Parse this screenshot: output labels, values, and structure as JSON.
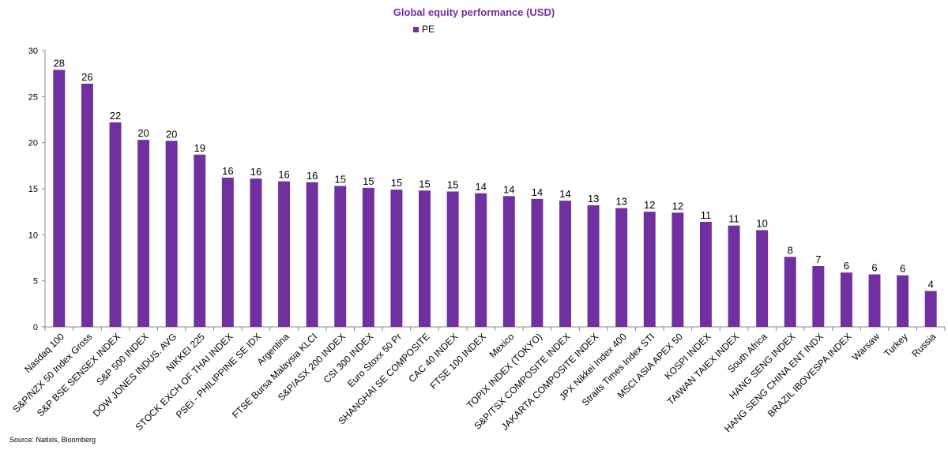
{
  "chart_data": {
    "type": "bar",
    "title": "Global equity performance (USD)",
    "legend": "top",
    "series": [
      {
        "name": "PE",
        "color": "#7030A0",
        "values": [
          27.9,
          26.4,
          22.2,
          20.3,
          20.2,
          18.7,
          16.2,
          16.1,
          15.8,
          15.7,
          15.3,
          15.1,
          14.9,
          14.8,
          14.7,
          14.5,
          14.2,
          13.9,
          13.7,
          13.2,
          12.9,
          12.5,
          12.4,
          11.4,
          11.0,
          10.5,
          7.6,
          6.6,
          5.9,
          5.7,
          5.6,
          3.9
        ]
      }
    ],
    "data_labels": [
      "28",
      "26",
      "22",
      "20",
      "20",
      "19",
      "16",
      "16",
      "16",
      "16",
      "15",
      "15",
      "15",
      "15",
      "15",
      "14",
      "14",
      "14",
      "14",
      "13",
      "13",
      "12",
      "12",
      "11",
      "11",
      "10",
      "8",
      "7",
      "6",
      "6",
      "6",
      "4"
    ],
    "categories": [
      "Nasdaq 100",
      "S&P/NZX 50 Index Gross",
      "S&P BSE SENSEX INDEX",
      "S&P 500 INDEX",
      "DOW JONES INDUS. AVG",
      "NIKKEI 225",
      "STOCK EXCH OF THAI INDEX",
      "PSEi - PHILIPPINE SE IDX",
      "Argentina",
      "FTSE Bursa Malaysia KLCI",
      "S&P/ASX 200 INDEX",
      "CSI 300 INDEX",
      "Euro Stoxx 50 Pr",
      "SHANGHAI SE COMPOSITE",
      "CAC 40 INDEX",
      "FTSE 100 INDEX",
      "Mexico",
      "TOPIX INDEX (TOKYO)",
      "S&P/TSX COMPOSITE INDEX",
      "JAKARTA COMPOSITE INDEX",
      "JPX Nikkei Index 400",
      "Straits Times Index STI",
      "MSCI ASIA APEX 50",
      "KOSPI INDEX",
      "TAIWAN TAIEX INDEX",
      "South Africa",
      "HANG SENG INDEX",
      "HANG SENG CHINA ENT INDX",
      "BRAZIL IBOVESPA INDEX",
      "Warsaw",
      "Turkey",
      "Russia"
    ],
    "ylim": [
      0,
      30
    ],
    "yticks": [
      0,
      5,
      10,
      15,
      20,
      25,
      30
    ],
    "grid": false
  },
  "source": "Source: Natixis, Bloomberg"
}
